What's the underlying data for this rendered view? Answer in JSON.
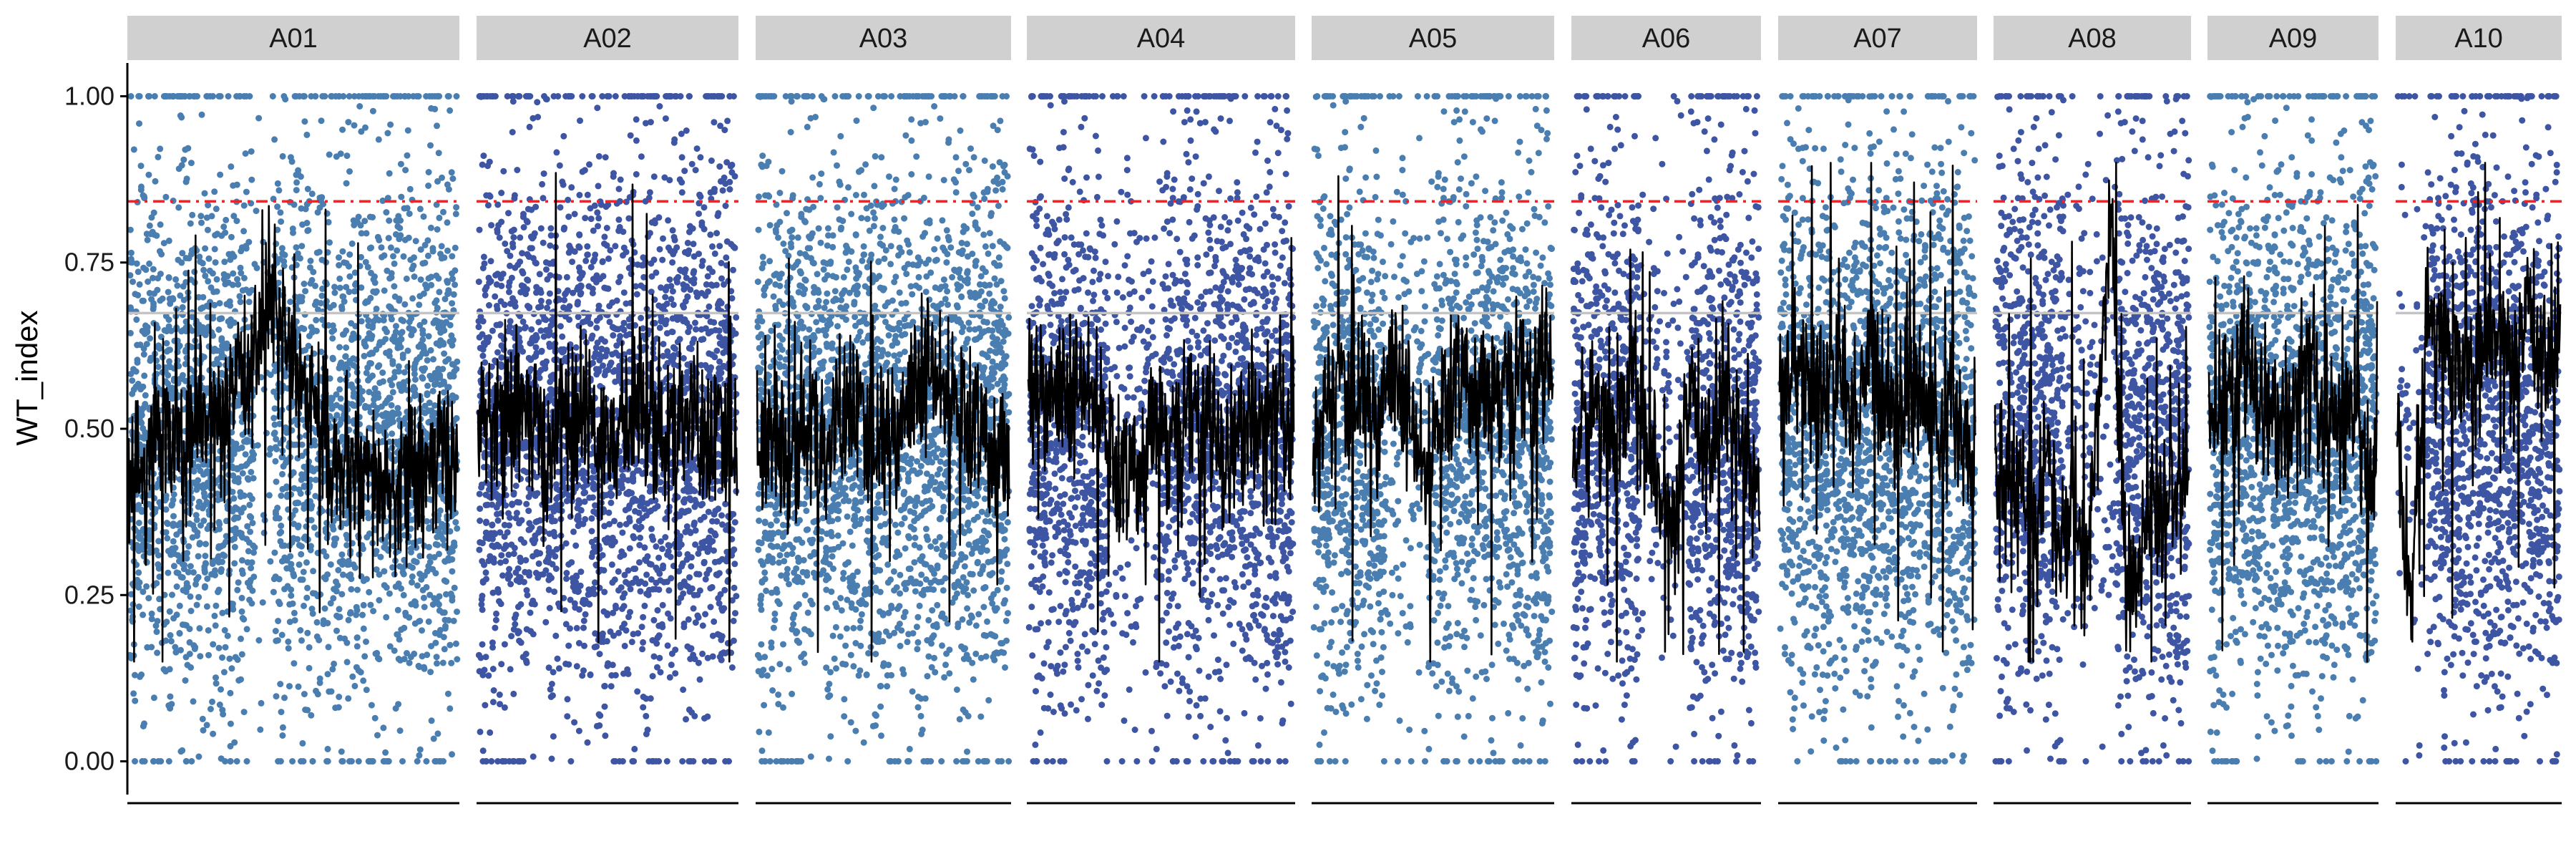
{
  "chart_data": {
    "type": "scatter",
    "title": "",
    "xlabel": "",
    "ylabel": "WT_index",
    "ylim": [
      -0.05,
      1.05
    ],
    "yticks": [
      0.0,
      0.25,
      0.5,
      0.75,
      1.0
    ],
    "ytick_labels": [
      "0.00",
      "0.25",
      "0.50",
      "0.75",
      "1.00"
    ],
    "reference_lines": [
      {
        "y": 0.842,
        "style": "dashed",
        "color": "#e8262b"
      },
      {
        "y": 0.674,
        "style": "solid",
        "color": "#c4c4c4"
      }
    ],
    "facets": [
      {
        "label": "A01",
        "color": "#4a7eb0",
        "pattern": "drop_mid",
        "line": [
          0.47,
          0.42,
          0.5,
          0.49,
          0.47,
          0.5,
          0.52,
          0.53,
          0.55,
          0.62,
          0.7,
          0.66,
          0.6,
          0.55,
          0.5,
          0.45,
          0.42,
          0.42,
          0.41,
          0.4,
          0.41,
          0.43,
          0.44,
          0.45,
          0.47
        ]
      },
      {
        "label": "A02",
        "color": "#3d55a3",
        "pattern": "uniform",
        "line": [
          0.5,
          0.52,
          0.48,
          0.55,
          0.5,
          0.45,
          0.53,
          0.49,
          0.52,
          0.5,
          0.47,
          0.52,
          0.55,
          0.5,
          0.48,
          0.52,
          0.5,
          0.47,
          0.49,
          0.46
        ]
      },
      {
        "label": "A03",
        "color": "#4a7eb0",
        "pattern": "uniform",
        "line": [
          0.48,
          0.5,
          0.46,
          0.47,
          0.52,
          0.45,
          0.5,
          0.54,
          0.49,
          0.47,
          0.5,
          0.52,
          0.55,
          0.58,
          0.55,
          0.52,
          0.5,
          0.47,
          0.48,
          0.45
        ]
      },
      {
        "label": "A04",
        "color": "#3d55a3",
        "pattern": "gap_mid",
        "line": [
          0.55,
          0.57,
          0.55,
          0.53,
          0.56,
          0.52,
          0.45,
          0.4,
          0.45,
          0.52,
          0.5,
          0.48,
          0.52,
          0.5,
          0.47,
          0.5,
          0.52,
          0.49,
          0.5,
          0.47
        ]
      },
      {
        "label": "A05",
        "color": "#4a7eb0",
        "pattern": "gap_mid",
        "line": [
          0.5,
          0.52,
          0.55,
          0.53,
          0.56,
          0.52,
          0.58,
          0.55,
          0.48,
          0.42,
          0.5,
          0.55,
          0.56,
          0.57,
          0.55,
          0.58,
          0.55,
          0.56,
          0.58,
          0.6
        ]
      },
      {
        "label": "A06",
        "color": "#3d55a3",
        "pattern": "sparse_mid",
        "line": [
          0.45,
          0.5,
          0.55,
          0.48,
          0.52,
          0.6,
          0.45,
          0.4,
          0.35,
          0.5,
          0.52,
          0.48,
          0.55,
          0.5,
          0.45,
          0.4
        ]
      },
      {
        "label": "A07",
        "color": "#4a7eb0",
        "pattern": "uniform",
        "line": [
          0.55,
          0.58,
          0.6,
          0.57,
          0.55,
          0.6,
          0.52,
          0.56,
          0.62,
          0.55,
          0.53,
          0.56,
          0.55,
          0.52,
          0.5,
          0.52,
          0.48,
          0.47
        ]
      },
      {
        "label": "A08",
        "color": "#3d55a3",
        "pattern": "sparse_mid",
        "line": [
          0.45,
          0.42,
          0.4,
          0.35,
          0.48,
          0.3,
          0.4,
          0.25,
          0.55,
          0.84,
          0.3,
          0.25,
          0.4,
          0.35,
          0.42,
          0.45
        ]
      },
      {
        "label": "A09",
        "color": "#4a7eb0",
        "pattern": "uniform",
        "line": [
          0.5,
          0.52,
          0.55,
          0.6,
          0.58,
          0.55,
          0.52,
          0.5,
          0.55,
          0.57,
          0.5,
          0.48,
          0.52,
          0.55,
          0.45,
          0.43
        ]
      },
      {
        "label": "A10",
        "color": "#3d55a3",
        "pattern": "sparse_left",
        "line": [
          0.5,
          0.25,
          0.67,
          0.64,
          0.6,
          0.58,
          0.62,
          0.65,
          0.6,
          0.66,
          0.62,
          0.64
        ]
      }
    ]
  }
}
